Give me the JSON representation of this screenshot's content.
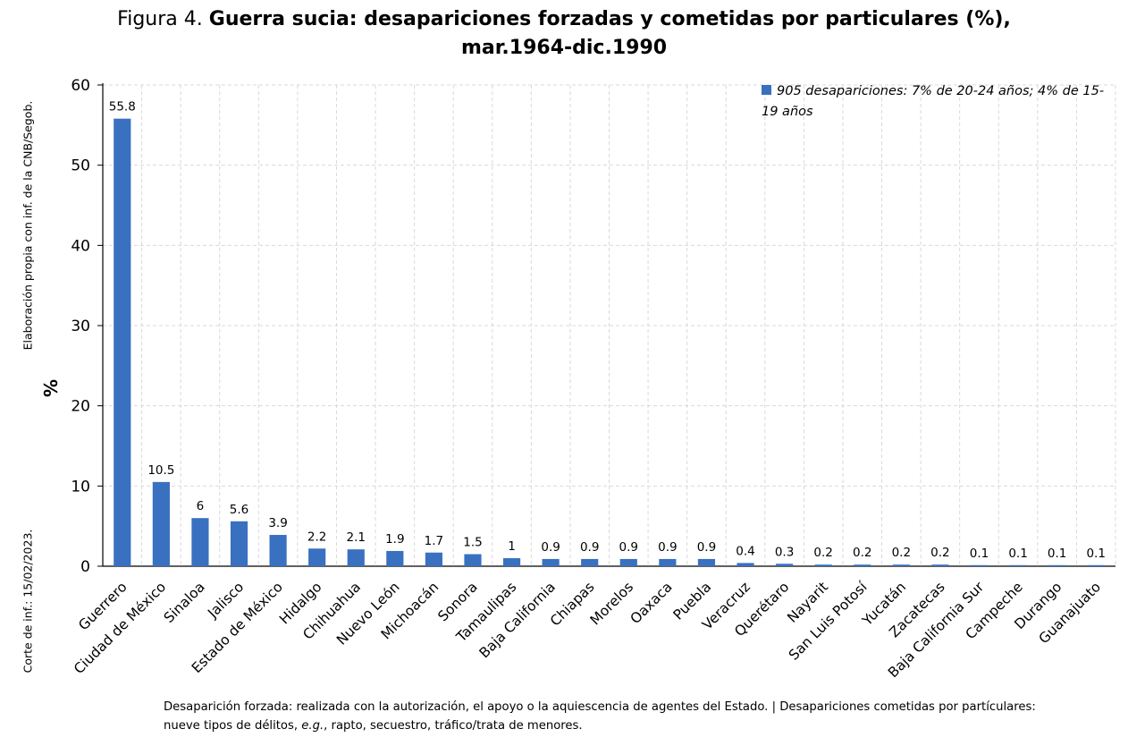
{
  "title": {
    "prefix": "Figura 4.",
    "bold": "Guerra sucia: desapariciones forzadas y cometidas por particulares (%),",
    "line2": "mar.1964-dic.1990"
  },
  "side_note_top": "Elaboración propia con inf. de la CNB/Segob.",
  "side_note_bottom": "Corte de inf.: 15/02/2023.",
  "legend": {
    "label": "905 desapariciones: 7% de 20-24 años; 4% de 15-19 años"
  },
  "footnote": {
    "part1": "Desaparición forzada: realizada con la autorización, el apoyo o la aquiescencia de agentes del Estado. | Desapariciones cometidas por partículares: nueve tipos de délitos,",
    "eg": "e.g.",
    "part2": ", rapto, secuestro, tráfico/trata de menores."
  },
  "colors": {
    "bar": "#3A70C0",
    "grid": "#D9D9D9"
  },
  "chart_data": {
    "type": "bar",
    "title": "Guerra sucia: desapariciones forzadas y cometidas por particulares (%), mar.1964-dic.1990",
    "xlabel": "",
    "ylabel": "%",
    "ylim": [
      0,
      60
    ],
    "yticks": [
      0,
      10,
      20,
      30,
      40,
      50,
      60
    ],
    "grid": true,
    "legend_position": "top-right",
    "categories": [
      "Guerrero",
      "Ciudad de México",
      "Sinaloa",
      "Jalisco",
      "Estado de México",
      "Hidalgo",
      "Chihuahua",
      "Nuevo León",
      "Michoacán",
      "Sonora",
      "Tamaulipas",
      "Baja California",
      "Chiapas",
      "Morelos",
      "Oaxaca",
      "Puebla",
      "Veracruz",
      "Querétaro",
      "Nayarit",
      "San Luis Potosí",
      "Yucatán",
      "Zacatecas",
      "Baja California Sur",
      "Campeche",
      "Durango",
      "Guanajuato"
    ],
    "series": [
      {
        "name": "905 desapariciones: 7% de 20-24 años; 4% de 15-19 años",
        "values": [
          55.8,
          10.5,
          6,
          5.6,
          3.9,
          2.2,
          2.1,
          1.9,
          1.7,
          1.5,
          1,
          0.9,
          0.9,
          0.9,
          0.9,
          0.9,
          0.4,
          0.3,
          0.2,
          0.2,
          0.2,
          0.2,
          0.1,
          0.1,
          0.1,
          0.1
        ],
        "labels": [
          "55.8",
          "10.5",
          "6",
          "5.6",
          "3.9",
          "2.2",
          "2.1",
          "1.9",
          "1.7",
          "1.5",
          "1",
          "0.9",
          "0.9",
          "0.9",
          "0.9",
          "0.9",
          "0.4",
          "0.3",
          "0.2",
          "0.2",
          "0.2",
          "0.2",
          "0.1",
          "0.1",
          "0.1",
          "0.1"
        ]
      }
    ]
  }
}
